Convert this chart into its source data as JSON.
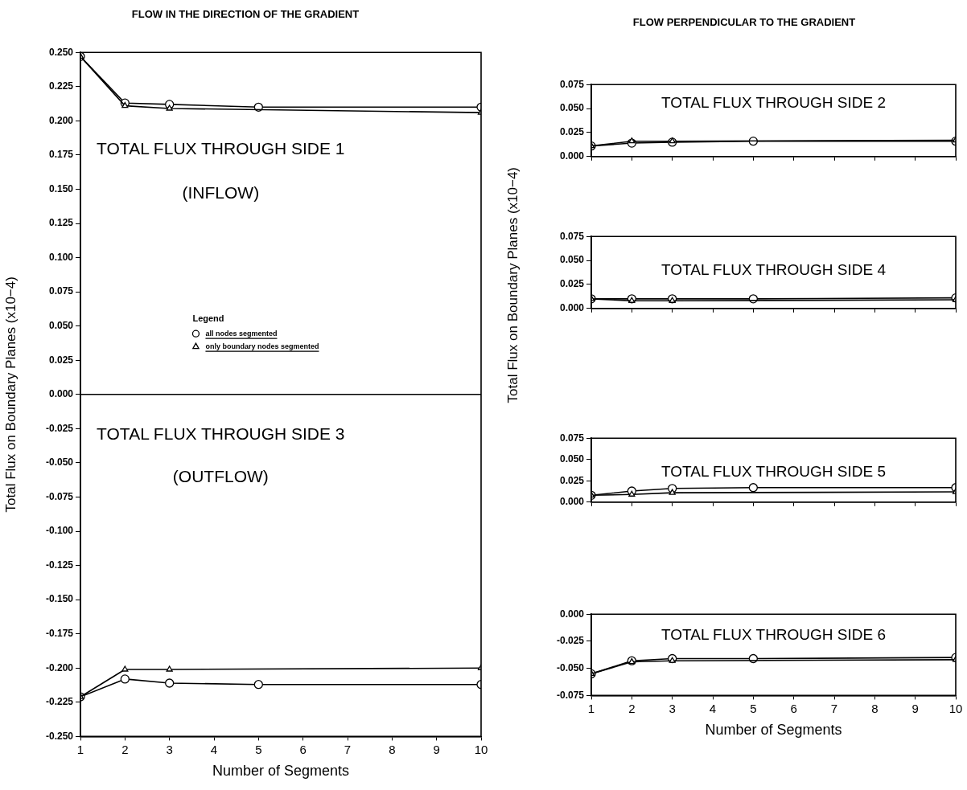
{
  "chart_data": [
    {
      "type": "line",
      "title": "FLOW IN THE DIRECTION OF THE GRADIENT",
      "xlabel": "Number of Segments",
      "ylabel": "Total Flux on Boundary Planes (x10−4)",
      "legend_title": "Legend",
      "legend": "center",
      "grid": false,
      "xlim": [
        1,
        10
      ],
      "xticks": [
        1,
        2,
        3,
        4,
        5,
        6,
        7,
        8,
        9,
        10
      ],
      "ylim": [
        -0.25,
        0.25
      ],
      "yticks": [
        {
          "value": -0.25,
          "label": "-0.250"
        },
        {
          "value": -0.225,
          "label": "-0.225"
        },
        {
          "value": -0.2,
          "label": "-0.200"
        },
        {
          "value": -0.175,
          "label": "-0.175"
        },
        {
          "value": -0.15,
          "label": "-0.150"
        },
        {
          "value": -0.125,
          "label": "-0.125"
        },
        {
          "value": -0.1,
          "label": "-0.100"
        },
        {
          "value": -0.075,
          "label": "-0.075"
        },
        {
          "value": -0.05,
          "label": "-0.050"
        },
        {
          "value": -0.025,
          "label": "-0.025"
        },
        {
          "value": 0,
          "label": "0.000"
        },
        {
          "value": 0.025,
          "label": "0.025"
        },
        {
          "value": 0.05,
          "label": "0.050"
        },
        {
          "value": 0.075,
          "label": "0.075"
        },
        {
          "value": 0.1,
          "label": "0.100"
        },
        {
          "value": 0.125,
          "label": "0.125"
        },
        {
          "value": 0.15,
          "label": "0.150"
        },
        {
          "value": 0.175,
          "label": "0.175"
        },
        {
          "value": 0.2,
          "label": "0.200"
        },
        {
          "value": 0.225,
          "label": "0.225"
        },
        {
          "value": 0.25,
          "label": "0.250"
        }
      ],
      "ref_lines": [
        {
          "axis": "y",
          "value": 0,
          "color": "#000000"
        }
      ],
      "annotations": [
        "TOTAL FLUX THROUGH SIDE 1",
        "(INFLOW)",
        "TOTAL FLUX THROUGH SIDE 3",
        "(OUTFLOW)"
      ],
      "series": [
        {
          "name": "all nodes segmented",
          "color": "#000000",
          "marker": "circle",
          "x": [
            1,
            2,
            3,
            5,
            10
          ],
          "values": [
            0.247,
            0.213,
            0.212,
            0.21,
            0.21
          ]
        },
        {
          "name": "only boundary nodes segmented",
          "color": "#000000",
          "marker": "triangle",
          "x": [
            1,
            2,
            3,
            10
          ],
          "values": [
            0.247,
            0.211,
            0.209,
            0.206
          ]
        },
        {
          "color": "#000000",
          "marker": "circle",
          "x": [
            1,
            2,
            3,
            5,
            10
          ],
          "values": [
            -0.221,
            -0.208,
            -0.211,
            -0.212,
            -0.212
          ]
        },
        {
          "color": "#000000",
          "marker": "triangle",
          "x": [
            1,
            2,
            3,
            10
          ],
          "values": [
            -0.221,
            -0.201,
            -0.201,
            -0.2
          ]
        }
      ]
    },
    {
      "type": "line",
      "title": "FLOW PERPENDICULAR TO THE GRADIENT",
      "grid": false,
      "tick_labels": "y",
      "xlim": [
        1,
        10
      ],
      "xticks": [
        1,
        2,
        3,
        4,
        5,
        6,
        7,
        8,
        9,
        10
      ],
      "ylim": [
        0,
        0.075
      ],
      "yticks": [
        {
          "value": 0,
          "label": "0.000"
        },
        {
          "value": 0.025,
          "label": "0.025"
        },
        {
          "value": 0.05,
          "label": "0.050"
        },
        {
          "value": 0.075,
          "label": "0.075"
        }
      ],
      "annotations": [
        "TOTAL FLUX THROUGH SIDE 2"
      ],
      "series": [
        {
          "color": "#000000",
          "marker": "circle",
          "x": [
            1,
            2,
            3,
            5,
            10
          ],
          "values": [
            0.011,
            0.014,
            0.015,
            0.016,
            0.016
          ]
        },
        {
          "color": "#000000",
          "marker": "triangle",
          "x": [
            1,
            2,
            3,
            10
          ],
          "values": [
            0.011,
            0.016,
            0.016,
            0.017
          ]
        }
      ]
    },
    {
      "type": "line",
      "grid": false,
      "tick_labels": "y",
      "xlim": [
        1,
        10
      ],
      "xticks": [
        1,
        2,
        3,
        4,
        5,
        6,
        7,
        8,
        9,
        10
      ],
      "ylabel": "Total Flux on Boundary Planes (x10−4)",
      "ylim": [
        0,
        0.075
      ],
      "yticks": [
        {
          "value": 0,
          "label": "0.000"
        },
        {
          "value": 0.025,
          "label": "0.025"
        },
        {
          "value": 0.05,
          "label": "0.050"
        },
        {
          "value": 0.075,
          "label": "0.075"
        }
      ],
      "annotations": [
        "TOTAL FLUX THROUGH SIDE 4"
      ],
      "series": [
        {
          "color": "#000000",
          "marker": "circle",
          "x": [
            1,
            2,
            3,
            5,
            10
          ],
          "values": [
            0.01,
            0.01,
            0.01,
            0.01,
            0.011
          ]
        },
        {
          "color": "#000000",
          "marker": "triangle",
          "x": [
            1,
            2,
            3,
            10
          ],
          "values": [
            0.01,
            0.008,
            0.008,
            0.009
          ]
        }
      ]
    },
    {
      "type": "line",
      "grid": false,
      "tick_labels": "y",
      "xlim": [
        1,
        10
      ],
      "xticks": [
        1,
        2,
        3,
        4,
        5,
        6,
        7,
        8,
        9,
        10
      ],
      "ylim": [
        0,
        0.075
      ],
      "yticks": [
        {
          "value": 0,
          "label": "0.000"
        },
        {
          "value": 0.025,
          "label": "0.025"
        },
        {
          "value": 0.05,
          "label": "0.050"
        },
        {
          "value": 0.075,
          "label": "0.075"
        }
      ],
      "annotations": [
        "TOTAL FLUX THROUGH SIDE 5"
      ],
      "series": [
        {
          "color": "#000000",
          "marker": "circle",
          "x": [
            1,
            2,
            3,
            5,
            10
          ],
          "values": [
            0.008,
            0.013,
            0.016,
            0.017,
            0.017
          ]
        },
        {
          "color": "#000000",
          "marker": "triangle",
          "x": [
            1,
            2,
            3,
            10
          ],
          "values": [
            0.008,
            0.009,
            0.011,
            0.012
          ]
        }
      ]
    },
    {
      "type": "line",
      "xlabel": "Number of Segments",
      "grid": false,
      "xlim": [
        1,
        10
      ],
      "xticks": [
        1,
        2,
        3,
        4,
        5,
        6,
        7,
        8,
        9,
        10
      ],
      "ylim": [
        -0.075,
        0
      ],
      "yticks": [
        {
          "value": -0.075,
          "label": "-0.075"
        },
        {
          "value": -0.05,
          "label": "-0.050"
        },
        {
          "value": -0.025,
          "label": "-0.025"
        },
        {
          "value": 0,
          "label": "0.000"
        }
      ],
      "annotations": [
        "TOTAL FLUX THROUGH SIDE 6"
      ],
      "series": [
        {
          "color": "#000000",
          "marker": "circle",
          "x": [
            1,
            2,
            3,
            5,
            10
          ],
          "values": [
            -0.055,
            -0.043,
            -0.041,
            -0.041,
            -0.04
          ]
        },
        {
          "color": "#000000",
          "marker": "triangle",
          "x": [
            1,
            2,
            3,
            10
          ],
          "values": [
            -0.055,
            -0.044,
            -0.043,
            -0.042
          ]
        }
      ]
    }
  ]
}
